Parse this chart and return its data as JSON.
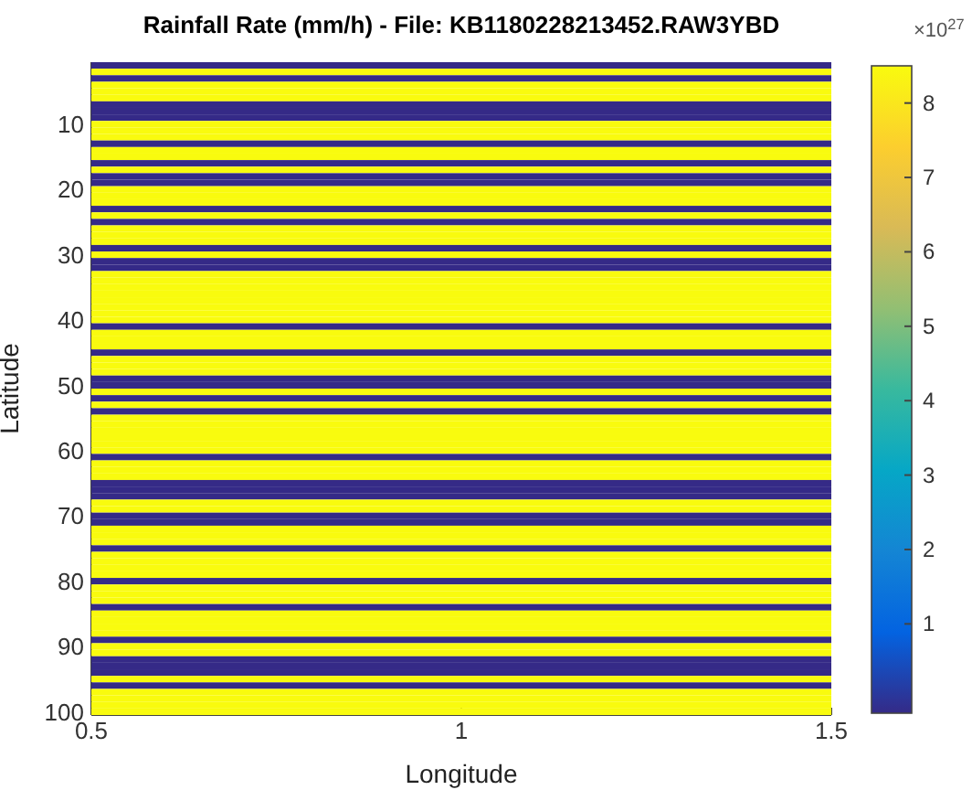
{
  "chart_data": {
    "type": "heatmap",
    "title": "Rainfall Rate (mm/h) - File: KB1180228213452.RAW3YBD",
    "xlabel": "Longitude",
    "ylabel": "Latitude",
    "xlim": [
      0.5,
      1.5
    ],
    "xticks": [
      0.5,
      1,
      1.5
    ],
    "ylim": [
      100.5,
      0.5
    ],
    "yticks": [
      10,
      20,
      30,
      40,
      50,
      60,
      70,
      80,
      90,
      100
    ],
    "clim": [
      -0.2,
      8.5
    ],
    "cticks": [
      1,
      2,
      3,
      4,
      5,
      6,
      7,
      8
    ],
    "annotations": [
      "×10$^{27}$"
    ],
    "cells": [
      [
        -0.2
      ],
      [
        8.5
      ],
      [
        -0.2
      ],
      [
        8.5
      ],
      [
        8.5
      ],
      [
        8.5
      ],
      [
        -0.2
      ],
      [
        -0.2
      ],
      [
        -0.2
      ],
      [
        8.5
      ],
      [
        8.5
      ],
      [
        8.5
      ],
      [
        -0.2
      ],
      [
        8.5
      ],
      [
        8.5
      ],
      [
        -0.2
      ],
      [
        8.5
      ],
      [
        -0.2
      ],
      [
        -0.2
      ],
      [
        8.5
      ],
      [
        8.5
      ],
      [
        8.5
      ],
      [
        -0.2
      ],
      [
        8.5
      ],
      [
        -0.2
      ],
      [
        8.5
      ],
      [
        8.5
      ],
      [
        8.5
      ],
      [
        -0.2
      ],
      [
        8.5
      ],
      [
        -0.2
      ],
      [
        -0.2
      ],
      [
        8.5
      ],
      [
        8.5
      ],
      [
        8.5
      ],
      [
        8.5
      ],
      [
        8.5
      ],
      [
        8.5
      ],
      [
        8.5
      ],
      [
        8.5
      ],
      [
        -0.2
      ],
      [
        8.5
      ],
      [
        8.5
      ],
      [
        8.5
      ],
      [
        -0.2
      ],
      [
        8.5
      ],
      [
        8.5
      ],
      [
        8.5
      ],
      [
        -0.2
      ],
      [
        -0.2
      ],
      [
        8.5
      ],
      [
        -0.2
      ],
      [
        8.5
      ],
      [
        -0.2
      ],
      [
        8.5
      ],
      [
        8.5
      ],
      [
        8.5
      ],
      [
        8.5
      ],
      [
        8.5
      ],
      [
        8.5
      ],
      [
        -0.2
      ],
      [
        8.5
      ],
      [
        8.5
      ],
      [
        8.5
      ],
      [
        -0.2
      ],
      [
        -0.2
      ],
      [
        -0.2
      ],
      [
        8.5
      ],
      [
        8.5
      ],
      [
        -0.2
      ],
      [
        -0.2
      ],
      [
        8.5
      ],
      [
        8.5
      ],
      [
        8.5
      ],
      [
        -0.2
      ],
      [
        8.5
      ],
      [
        8.5
      ],
      [
        8.5
      ],
      [
        8.5
      ],
      [
        -0.2
      ],
      [
        8.5
      ],
      [
        8.5
      ],
      [
        8.5
      ],
      [
        -0.2
      ],
      [
        8.5
      ],
      [
        8.5
      ],
      [
        8.5
      ],
      [
        8.5
      ],
      [
        -0.2
      ],
      [
        8.5
      ],
      [
        8.5
      ],
      [
        -0.2
      ],
      [
        -0.2
      ],
      [
        -0.2
      ],
      [
        8.5
      ],
      [
        -0.2
      ],
      [
        8.5
      ],
      [
        8.5
      ],
      [
        8.5
      ],
      [
        8.5
      ]
    ]
  }
}
